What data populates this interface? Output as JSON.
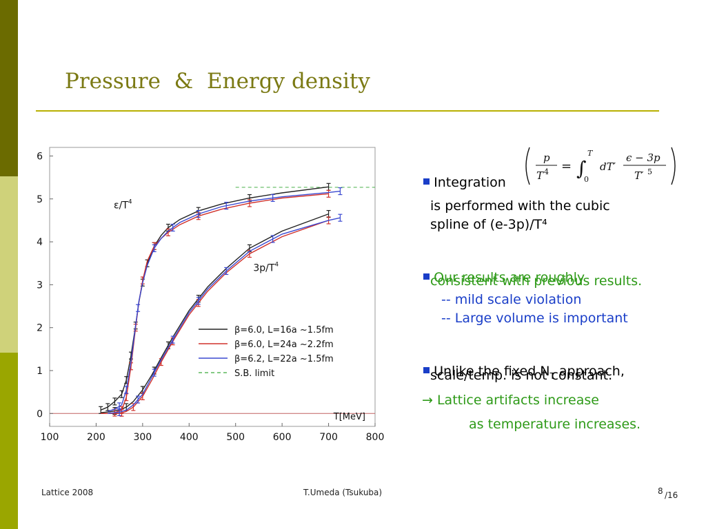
{
  "slide": {
    "title": "Pressure  &  Energy density",
    "footer_left": "Lattice 2008",
    "footer_center": "T.Umeda (Tsukuba)",
    "page_number": "8",
    "page_total": "/16"
  },
  "bullets": {
    "b1_label": "Integration",
    "b1_line2": "is performed with the cubic",
    "b1_line3": "spline of (e-3p)/T⁴",
    "b2_line1": "Our results are roughly",
    "b2_line2": "consistent with previous results.",
    "b2_line3": "-- mild scale violation",
    "b2_line4": "-- Large volume is important",
    "b3_line1_pre": "Unlike the fixed N",
    "b3_line1_sub": "T",
    "b3_line1_post": " approach,",
    "b3_line2": "scale/temp. is not constant.",
    "b4_line1": "→ Lattice artifacts increase",
    "b4_line2": "as temperature increases."
  },
  "colors": {
    "title": "#7b7a14",
    "bullet_square": "#1a3ec8",
    "green_text": "#2e9a18",
    "blue_text": "#1a3ec8",
    "series_black": "#222222",
    "series_red": "#d0302a",
    "series_blue": "#3a48d0",
    "sb_limit": "#5cb85c"
  },
  "chart_data": {
    "type": "line",
    "xlabel": "T[MeV]",
    "ylabel": "",
    "xlim": [
      100,
      800
    ],
    "ylim": [
      -0.3,
      6.2
    ],
    "xticks": [
      100,
      200,
      300,
      400,
      500,
      600,
      700,
      800
    ],
    "yticks": [
      0,
      1,
      2,
      3,
      4,
      5,
      6
    ],
    "grid": false,
    "legend_position": "lower-right",
    "curve_labels": [
      {
        "text": "ε/T",
        "sup": "4",
        "x": 238,
        "y": 4.78
      },
      {
        "text": "3p/T",
        "sup": "4",
        "x": 538,
        "y": 3.32
      }
    ],
    "sb_limit": {
      "name": "S.B. limit",
      "y": 5.27,
      "x_start": 500,
      "x_end": 800
    },
    "series": [
      {
        "name": "β=6.0, L=16a ~1.5fm",
        "color": "#222222",
        "energy_x": [
          210,
          225,
          240,
          255,
          265,
          275,
          285,
          292,
          300,
          310,
          325,
          340,
          355,
          380,
          420,
          470,
          530,
          600,
          700
        ],
        "energy_y": [
          0.08,
          0.15,
          0.28,
          0.45,
          0.78,
          1.35,
          2.05,
          2.6,
          3.05,
          3.5,
          3.9,
          4.15,
          4.33,
          4.52,
          4.72,
          4.88,
          5.02,
          5.14,
          5.28
        ],
        "pressure_x": [
          210,
          230,
          250,
          265,
          280,
          300,
          320,
          340,
          365,
          400,
          440,
          480,
          530,
          600,
          700
        ],
        "pressure_y": [
          0.02,
          0.04,
          0.08,
          0.15,
          0.28,
          0.55,
          0.9,
          1.3,
          1.78,
          2.4,
          2.95,
          3.38,
          3.85,
          4.25,
          4.65
        ],
        "energy_err_x": [
          210,
          225,
          240,
          255,
          265,
          275,
          285,
          300,
          310,
          325,
          355,
          420,
          530,
          700
        ],
        "pressure_err_x": [
          240,
          265,
          300,
          325,
          355,
          420,
          530,
          700
        ]
      },
      {
        "name": "β=6.0, L=24a ~2.2fm",
        "color": "#d0302a",
        "energy_x": [
          210,
          225,
          240,
          255,
          265,
          275,
          285,
          292,
          300,
          310,
          325,
          340,
          355,
          380,
          420,
          470,
          530,
          600,
          700
        ],
        "energy_y": [
          0.0,
          0.0,
          0.02,
          0.08,
          0.38,
          1.1,
          2.0,
          2.6,
          3.1,
          3.55,
          3.9,
          4.08,
          4.22,
          4.4,
          4.6,
          4.76,
          4.9,
          5.02,
          5.12
        ],
        "pressure_x": [
          210,
          230,
          250,
          265,
          280,
          300,
          320,
          340,
          365,
          400,
          440,
          480,
          530,
          600,
          700
        ],
        "pressure_y": [
          0.0,
          0.0,
          0.0,
          0.05,
          0.15,
          0.4,
          0.78,
          1.2,
          1.68,
          2.3,
          2.85,
          3.28,
          3.72,
          4.12,
          4.5
        ],
        "energy_err_x": [
          240,
          255,
          265,
          275,
          285,
          300,
          325,
          355,
          420,
          530,
          700
        ],
        "pressure_err_x": [
          255,
          280,
          300,
          340,
          365,
          420,
          530,
          700
        ]
      },
      {
        "name": "β=6.2, L=22a ~1.5fm",
        "color": "#3a48d0",
        "energy_x": [
          225,
          240,
          255,
          265,
          275,
          285,
          292,
          300,
          310,
          325,
          340,
          355,
          380,
          420,
          470,
          530,
          600,
          700,
          725
        ],
        "energy_y": [
          0.05,
          0.1,
          0.2,
          0.55,
          1.2,
          2.05,
          2.62,
          3.05,
          3.45,
          3.85,
          4.08,
          4.25,
          4.45,
          4.65,
          4.82,
          4.95,
          5.05,
          5.15,
          5.18
        ],
        "pressure_x": [
          225,
          250,
          265,
          280,
          300,
          320,
          340,
          365,
          400,
          440,
          480,
          530,
          600,
          700,
          725
        ],
        "pressure_y": [
          0.0,
          0.03,
          0.08,
          0.2,
          0.45,
          0.85,
          1.25,
          1.72,
          2.35,
          2.9,
          3.32,
          3.78,
          4.18,
          4.5,
          4.56
        ],
        "energy_err_x": [
          250,
          265,
          290,
          325,
          365,
          420,
          480,
          580,
          725
        ],
        "pressure_err_x": [
          250,
          290,
          325,
          365,
          420,
          480,
          580,
          725
        ]
      }
    ]
  }
}
